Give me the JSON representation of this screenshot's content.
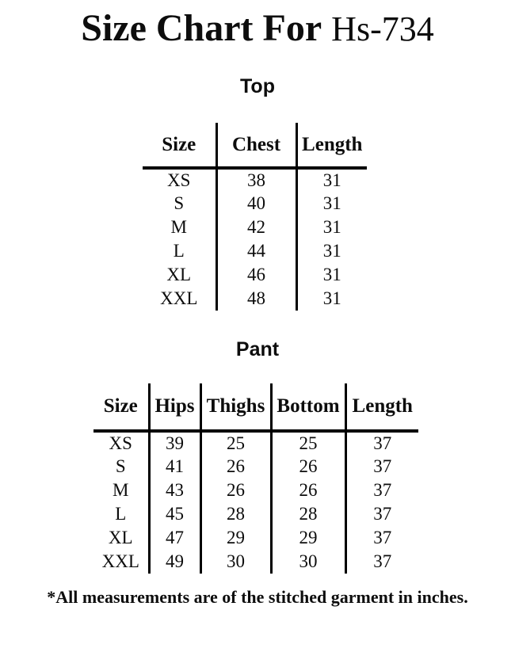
{
  "page": {
    "title_main": "Size Chart For",
    "title_code": "Hs-734",
    "footnote": "*All measurements are of the stitched garment in inches."
  },
  "colors": {
    "background": "#ffffff",
    "text": "#0d0d0d",
    "rule": "#000000"
  },
  "top_section": {
    "label": "Top",
    "columns": [
      "Size",
      "Chest",
      "Length"
    ],
    "rows": [
      [
        "XS",
        "38",
        "31"
      ],
      [
        "S",
        "40",
        "31"
      ],
      [
        "M",
        "42",
        "31"
      ],
      [
        "L",
        "44",
        "31"
      ],
      [
        "XL",
        "46",
        "31"
      ],
      [
        "XXL",
        "48",
        "31"
      ]
    ]
  },
  "pant_section": {
    "label": "Pant",
    "columns": [
      "Size",
      "Hips",
      "Thighs",
      "Bottom",
      "Length"
    ],
    "rows": [
      [
        "XS",
        "39",
        "25",
        "25",
        "37"
      ],
      [
        "S",
        "41",
        "26",
        "26",
        "37"
      ],
      [
        "M",
        "43",
        "26",
        "26",
        "37"
      ],
      [
        "L",
        "45",
        "28",
        "28",
        "37"
      ],
      [
        "XL",
        "47",
        "29",
        "29",
        "37"
      ],
      [
        "XXL",
        "49",
        "30",
        "30",
        "37"
      ]
    ]
  }
}
